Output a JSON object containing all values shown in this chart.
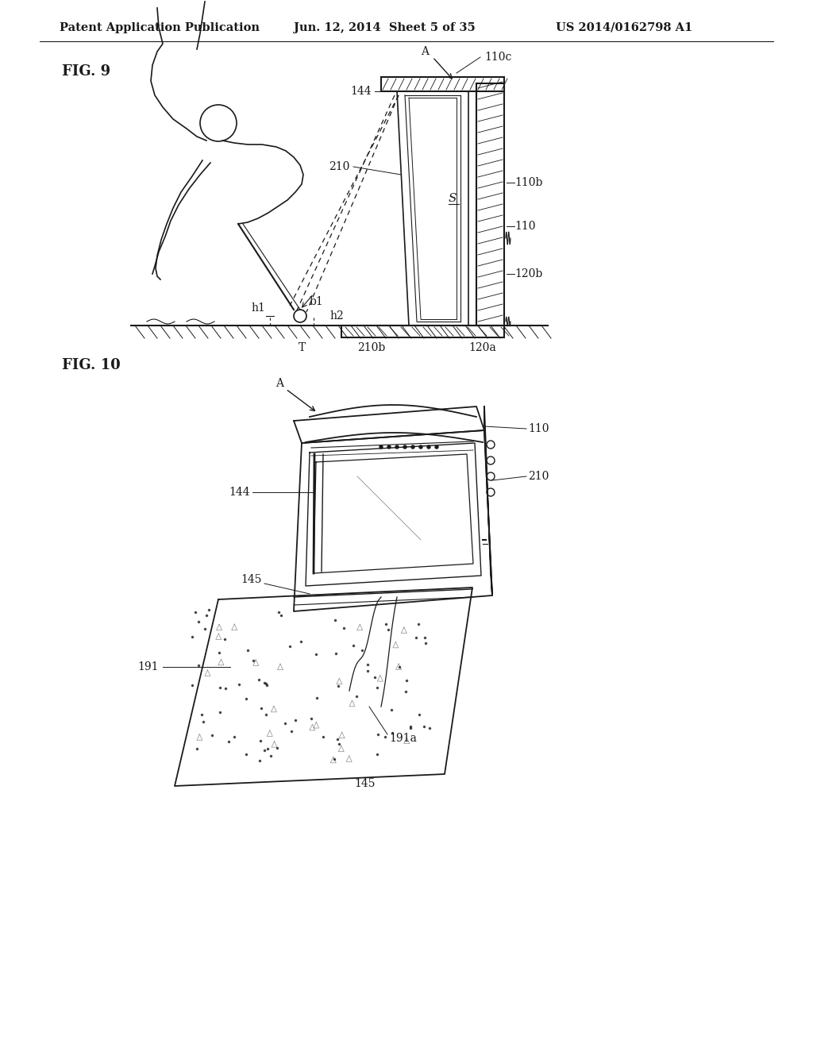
{
  "background_color": "#ffffff",
  "header_text": "Patent Application Publication",
  "header_date": "Jun. 12, 2014  Sheet 5 of 35",
  "header_patent": "US 2014/0162798 A1",
  "fig9_label": "FIG. 9",
  "fig10_label": "FIG. 10",
  "line_color": "#1a1a1a",
  "label_fontsize": 10,
  "header_fontsize": 10.5
}
